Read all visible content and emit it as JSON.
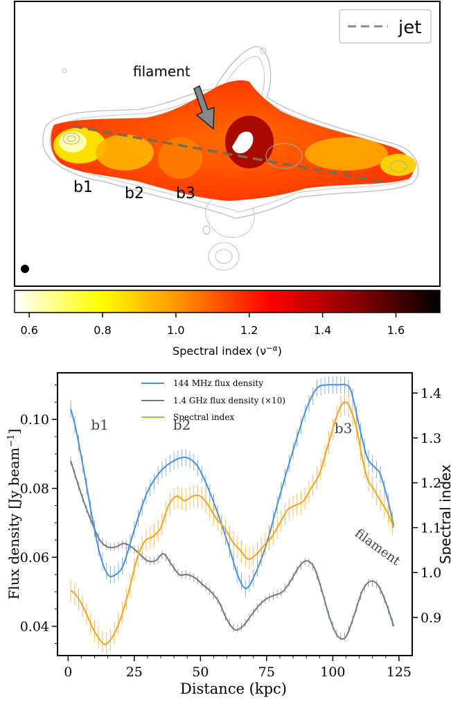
{
  "map_panel": {
    "legend_label": "jet",
    "filament_label": "filament",
    "region_labels": [
      "b1",
      "b2",
      "b3"
    ],
    "colorbar": {
      "label": "Spectral index (ν",
      "label_sup": "−α",
      "label_close": ")",
      "ticks": [
        "0.6",
        "0.8",
        "1.0",
        "1.2",
        "1.4",
        "1.6"
      ],
      "tick_values": [
        0.6,
        0.8,
        1.0,
        1.2,
        1.4,
        1.6
      ],
      "range": [
        0.56,
        1.72
      ],
      "colors": [
        "#ffffff",
        "#ffff00",
        "#ff8c00",
        "#ff0000",
        "#8b0000",
        "#000000"
      ]
    }
  },
  "chart_data": {
    "type": "line",
    "xlabel": "Distance (kpc)",
    "ylabel": "Flux density [Jy beam",
    "ylabel_sup": "−1",
    "ylabel_close": "]",
    "y2label": "Spectral index",
    "xlim": [
      -4,
      130
    ],
    "ylim": [
      0.0315,
      0.1135
    ],
    "y2lim": [
      0.815,
      1.445
    ],
    "xticks": [
      0,
      25,
      50,
      75,
      100,
      125
    ],
    "yticks": [
      0.04,
      0.06,
      0.08,
      0.1
    ],
    "ytick_labels": [
      "0.04",
      "0.06",
      "0.08",
      "0.10"
    ],
    "y2ticks": [
      0.9,
      1.0,
      1.1,
      1.2,
      1.3,
      1.4
    ],
    "y2tick_labels": [
      "0.9",
      "1.0",
      "1.1",
      "1.2",
      "1.3",
      "1.4"
    ],
    "annotations": [
      {
        "text": "b1",
        "x": 12,
        "y": 0.097
      },
      {
        "text": "b2",
        "x": 43,
        "y": 0.097
      },
      {
        "text": "b3",
        "x": 104,
        "y": 0.096
      },
      {
        "text": "filament",
        "x": 116,
        "y": 0.062
      }
    ],
    "series": [
      {
        "name": "144 MHz flux density",
        "axis": "left",
        "color": "#4a90d9",
        "x": [
          1,
          3,
          6,
          9,
          12,
          15,
          18,
          21,
          25,
          30,
          35,
          40,
          44,
          47,
          50,
          55,
          60,
          64,
          67,
          70,
          75,
          80,
          85,
          90,
          94,
          98,
          102,
          105,
          107,
          110,
          113,
          116,
          118,
          121,
          123
        ],
        "values": [
          0.103,
          0.097,
          0.085,
          0.072,
          0.061,
          0.055,
          0.055,
          0.058,
          0.068,
          0.079,
          0.085,
          0.088,
          0.089,
          0.088,
          0.085,
          0.076,
          0.065,
          0.055,
          0.051,
          0.054,
          0.064,
          0.078,
          0.091,
          0.103,
          0.109,
          0.11,
          0.11,
          0.11,
          0.108,
          0.098,
          0.089,
          0.086,
          0.084,
          0.076,
          0.069
        ],
        "error": 0.0025
      },
      {
        "name": "1.4 GHz flux density (×10)",
        "axis": "left",
        "color": "#707a80",
        "x": [
          1,
          3,
          6,
          9,
          12,
          15,
          18,
          21,
          24,
          27,
          30,
          33,
          36,
          39,
          42,
          45,
          48,
          51,
          54,
          57,
          60,
          63,
          66,
          69,
          72,
          75,
          78,
          81,
          84,
          87,
          90,
          93,
          96,
          99,
          102,
          105,
          108,
          111,
          114,
          117,
          120,
          123
        ],
        "values": [
          0.088,
          0.083,
          0.076,
          0.07,
          0.065,
          0.063,
          0.063,
          0.064,
          0.063,
          0.061,
          0.059,
          0.059,
          0.061,
          0.058,
          0.055,
          0.055,
          0.054,
          0.052,
          0.05,
          0.047,
          0.042,
          0.039,
          0.04,
          0.043,
          0.046,
          0.048,
          0.049,
          0.05,
          0.053,
          0.057,
          0.059,
          0.057,
          0.05,
          0.042,
          0.037,
          0.037,
          0.043,
          0.05,
          0.053,
          0.052,
          0.047,
          0.04
        ],
        "error": 0.0012
      },
      {
        "name": "Spectral index",
        "axis": "right",
        "color": "#f5a31a",
        "x": [
          1,
          3,
          6,
          9,
          12,
          14,
          16,
          18,
          20,
          23,
          26,
          29,
          32,
          35,
          38,
          41,
          44,
          47,
          50,
          53,
          56,
          59,
          62,
          65,
          68,
          71,
          74,
          77,
          80,
          83,
          86,
          89,
          92,
          95,
          98,
          101,
          103,
          105,
          107,
          109,
          111,
          113,
          115,
          117,
          119,
          121,
          123
        ],
        "values": [
          0.96,
          0.95,
          0.92,
          0.88,
          0.85,
          0.84,
          0.85,
          0.87,
          0.9,
          0.96,
          1.03,
          1.07,
          1.08,
          1.1,
          1.15,
          1.17,
          1.16,
          1.17,
          1.17,
          1.15,
          1.12,
          1.1,
          1.07,
          1.05,
          1.03,
          1.04,
          1.06,
          1.08,
          1.11,
          1.14,
          1.15,
          1.16,
          1.19,
          1.22,
          1.28,
          1.34,
          1.37,
          1.38,
          1.36,
          1.32,
          1.26,
          1.21,
          1.19,
          1.17,
          1.15,
          1.13,
          1.1
        ],
        "error": 0.025
      }
    ]
  }
}
